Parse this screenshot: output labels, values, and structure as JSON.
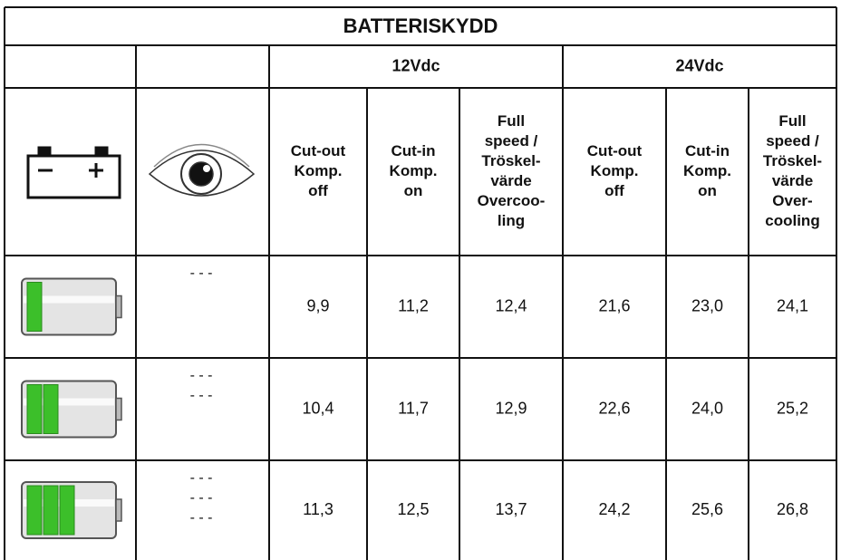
{
  "title": "BATTERISKYDD",
  "groups": [
    "12Vdc",
    "24Vdc"
  ],
  "columns": [
    [
      "Cut-out",
      "Komp.",
      "off"
    ],
    [
      "Cut-in",
      "Komp.",
      "on"
    ],
    [
      "Full",
      "speed /",
      "Tröskel-",
      "värde",
      "Overcoo-",
      "ling"
    ],
    [
      "Cut-out",
      "Komp.",
      "off"
    ],
    [
      "Cut-in",
      "Komp.",
      "on"
    ],
    [
      "Full",
      "speed /",
      "Tröskel-",
      "värde",
      "Over-",
      "cooling"
    ]
  ],
  "rows": [
    {
      "indicator": [
        "- - -"
      ],
      "values": [
        "9,9",
        "11,2",
        "12,4",
        "21,6",
        "23,0",
        "24,1"
      ]
    },
    {
      "indicator": [
        "- - -",
        "- - -"
      ],
      "values": [
        "10,4",
        "11,7",
        "12,9",
        "22,6",
        "24,0",
        "25,2"
      ]
    },
    {
      "indicator": [
        "- - -",
        "- - -",
        "- - -"
      ],
      "values": [
        "11,3",
        "12,5",
        "13,7",
        "24,2",
        "25,6",
        "26,8"
      ]
    }
  ]
}
